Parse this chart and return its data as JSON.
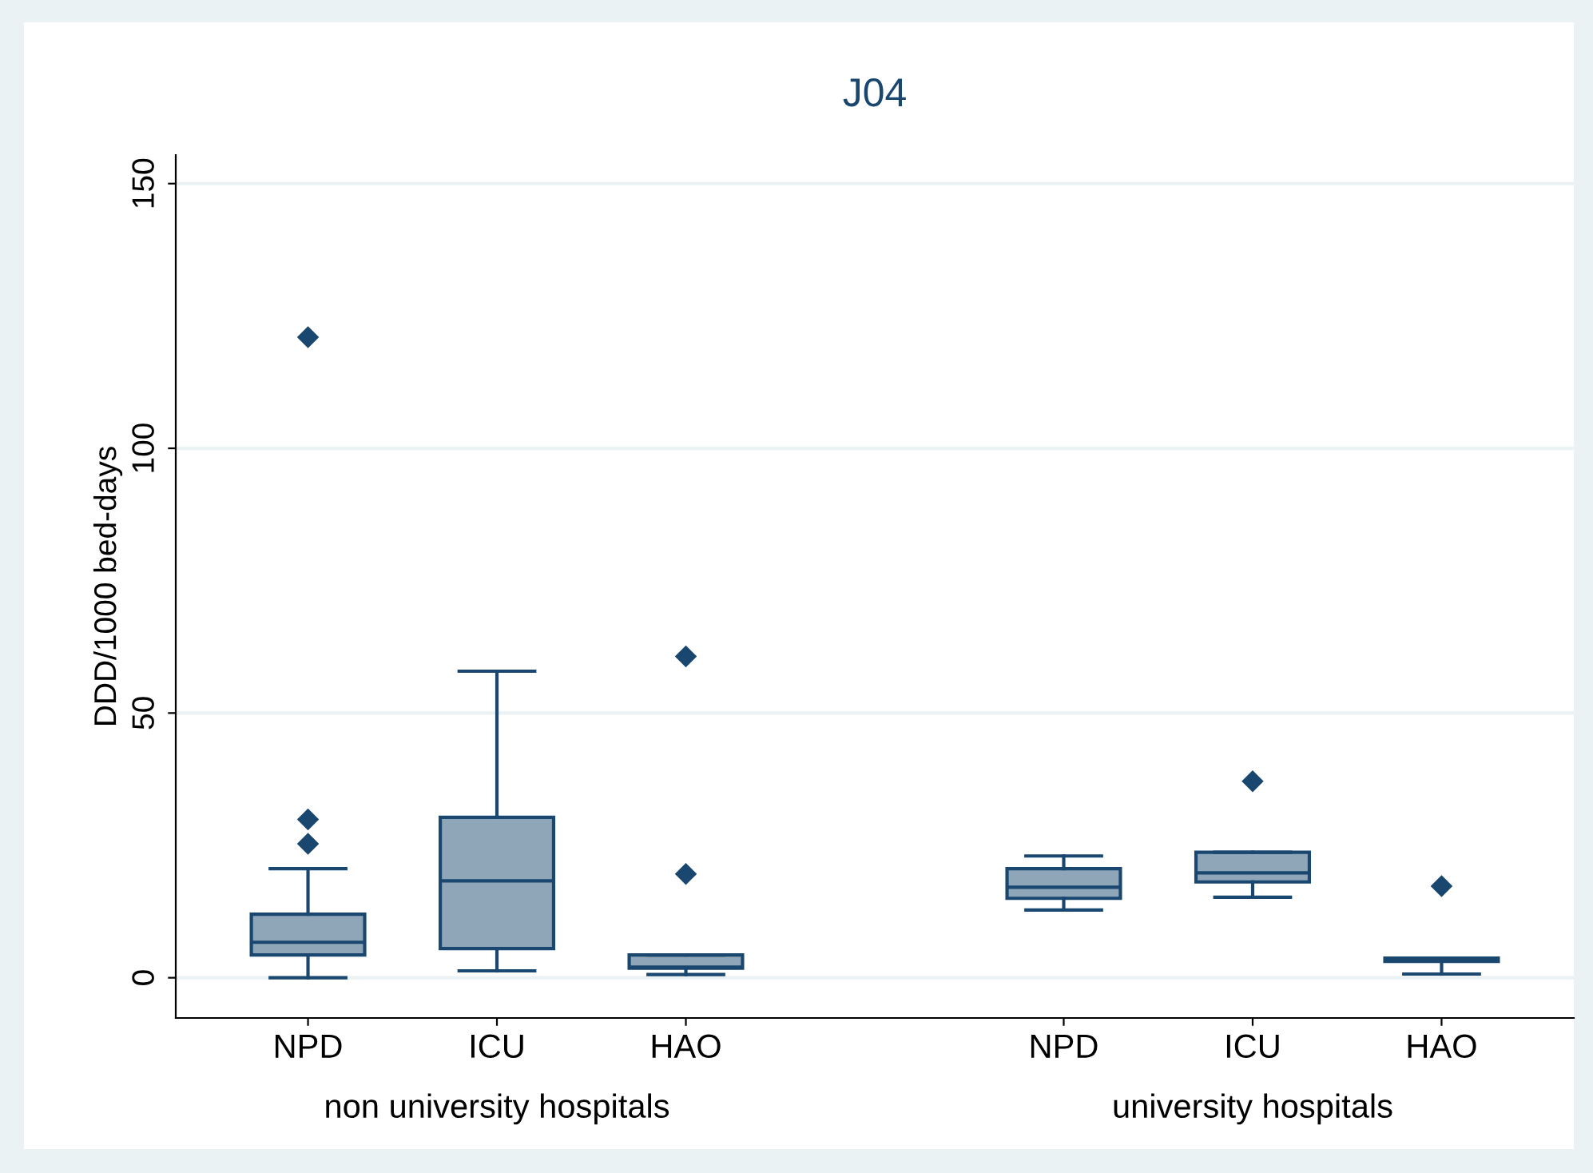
{
  "chart_data": {
    "type": "box",
    "title": "J04",
    "ylabel": "DDD/1000 bed-days",
    "categories": [
      "NPD",
      "ICU",
      "HAO",
      null,
      "NPD",
      "ICU",
      "HAO"
    ],
    "annotations": [
      "non university hospitals",
      "university hospitals"
    ],
    "series": [
      {
        "color": "#8fa5b8",
        "boxes": [
          {
            "low": 0,
            "q1": 4.3,
            "median": 6.7,
            "q3": 12.0,
            "high": 20.6,
            "outliers": [
              25.3,
              29.9,
              121
            ]
          },
          {
            "low": 1.3,
            "q1": 5.5,
            "median": 18.3,
            "q3": 30.3,
            "high": 57.9
          },
          {
            "low": 0.6,
            "q1": 1.8,
            "median": 2.0,
            "q3": 4.3,
            "high": 4.3,
            "outliers": [
              19.6,
              60.7
            ]
          },
          null,
          {
            "low": 12.8,
            "q1": 15.0,
            "median": 17.1,
            "q3": 20.6,
            "high": 23.0
          },
          {
            "low": 15.2,
            "q1": 18.1,
            "median": 19.8,
            "q3": 23.7,
            "high": 23.7,
            "outliers": [
              37.1
            ]
          },
          {
            "low": 0.7,
            "q1": 3.1,
            "median": 3.4,
            "q3": 3.7,
            "high": 3.7,
            "outliers": [
              17.3
            ]
          }
        ]
      }
    ],
    "ylim": [
      -7.6,
      155.4
    ],
    "yticks": [
      0,
      50,
      100,
      150
    ],
    "grid": "y",
    "marker": "diamond"
  }
}
